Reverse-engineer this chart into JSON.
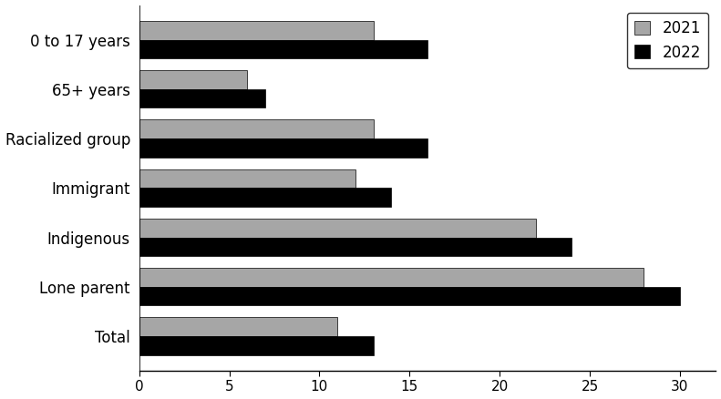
{
  "categories": [
    "Total",
    "Lone parent",
    "Indigenous",
    "Immigrant",
    "Racialized group",
    "65+ years",
    "0 to 17 years"
  ],
  "values_2021": [
    11,
    28,
    22,
    12,
    13,
    6,
    13
  ],
  "values_2022": [
    13,
    30,
    24,
    14,
    16,
    7,
    16
  ],
  "color_2021": "#a6a6a6",
  "color_2022": "#000000",
  "legend_labels": [
    "2021",
    "2022"
  ],
  "xlim": [
    0,
    32
  ],
  "xticks": [
    0,
    5,
    10,
    15,
    20,
    25,
    30
  ],
  "bar_height": 0.38,
  "background_color": "#ffffff",
  "edge_color": "#000000",
  "fontsize_labels": 12,
  "fontsize_ticks": 11,
  "fontsize_legend": 12
}
